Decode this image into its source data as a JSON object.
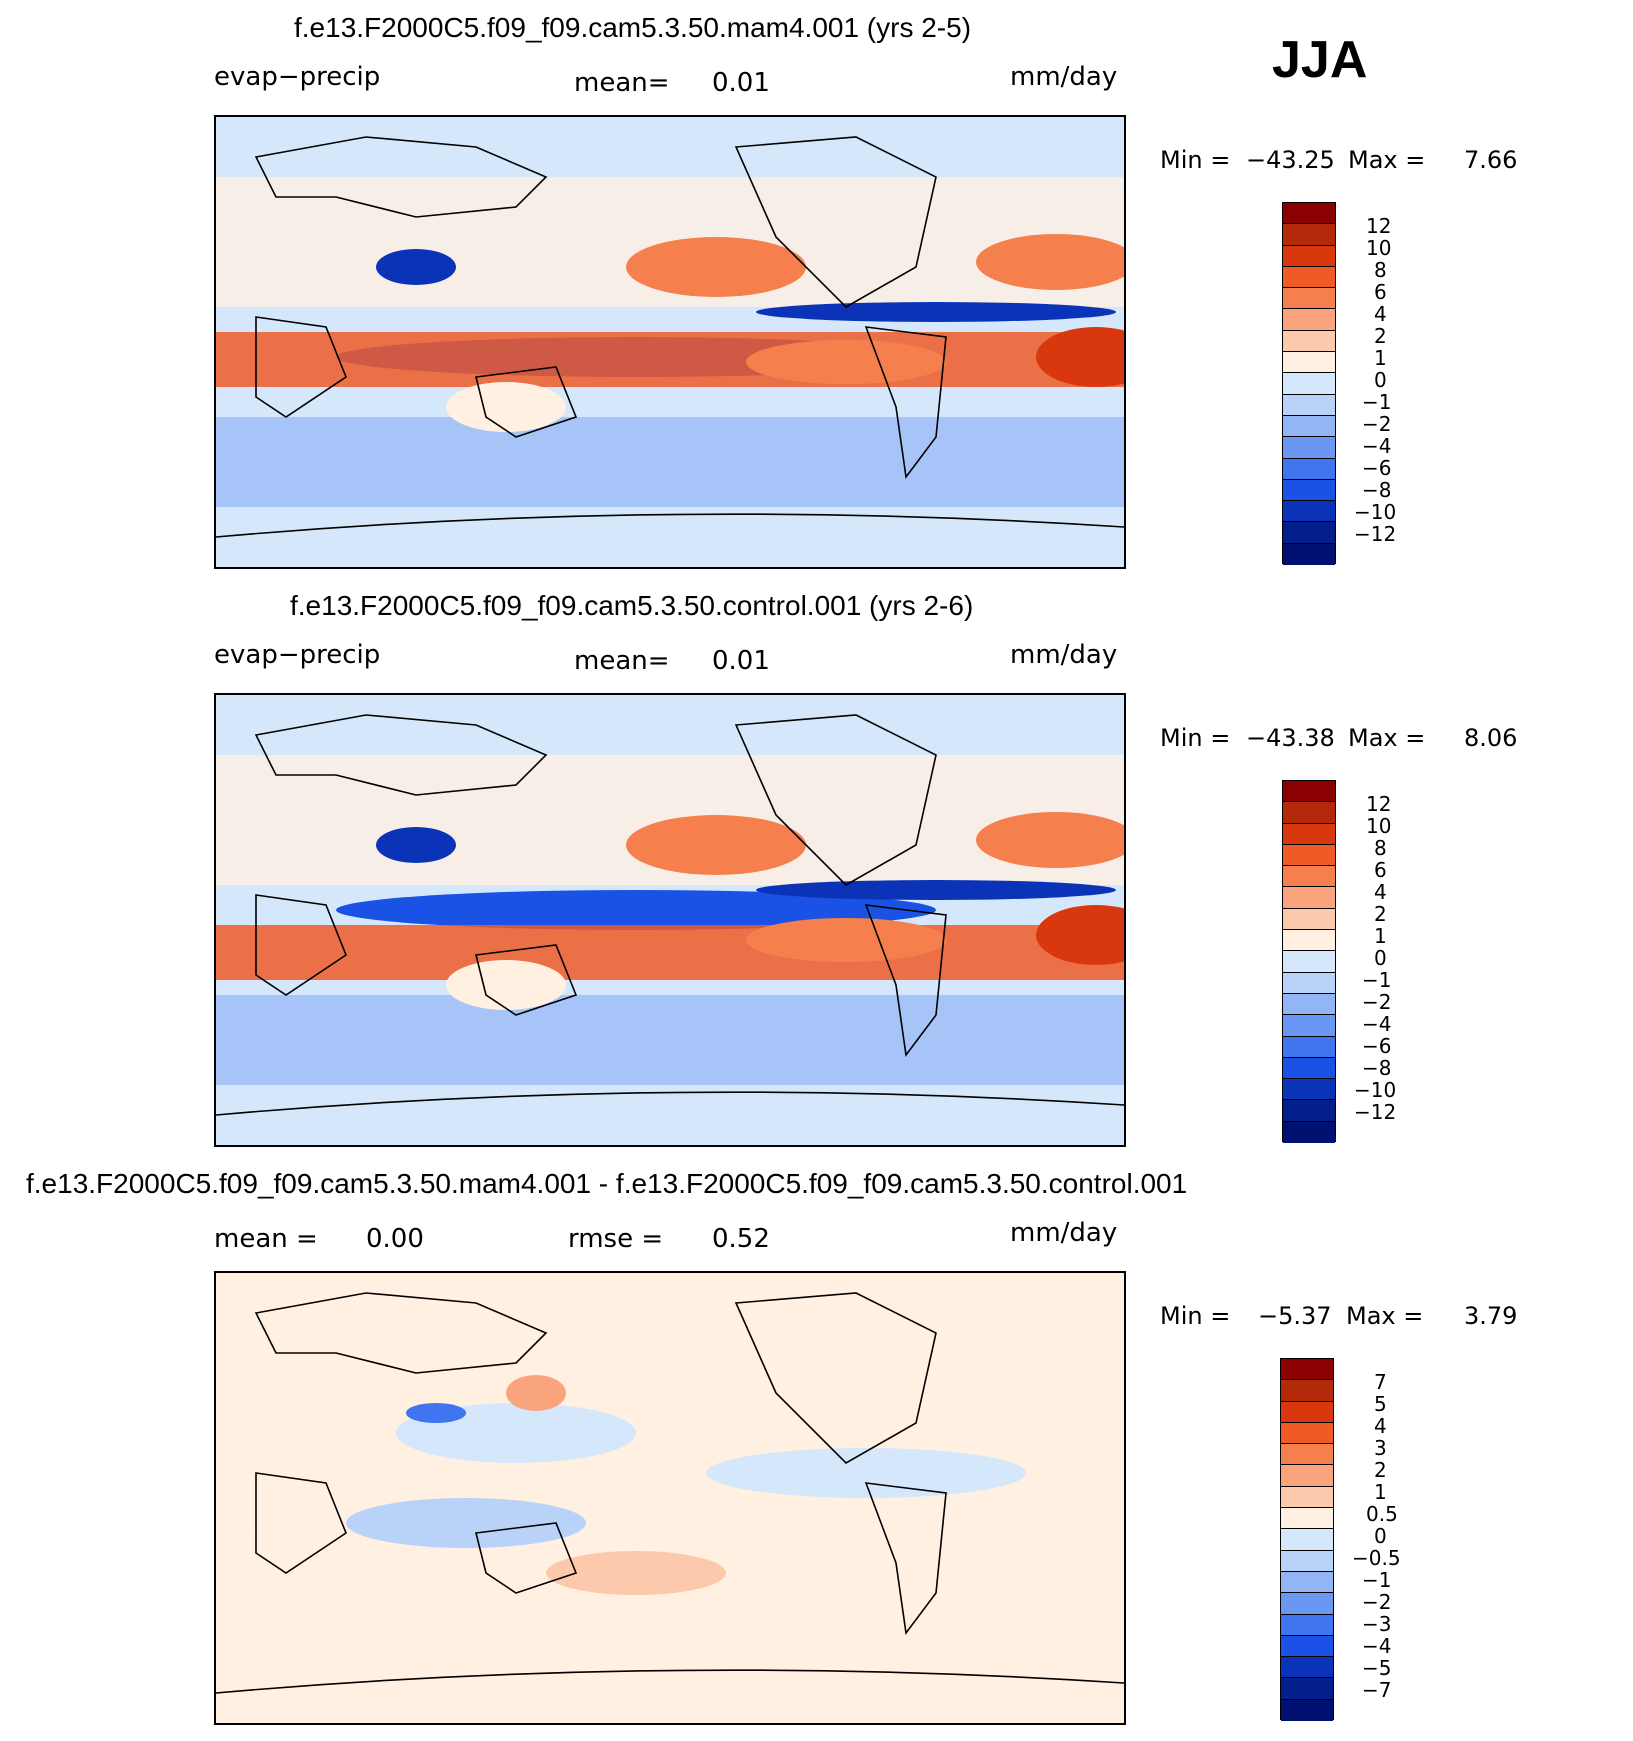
{
  "season": "JJA",
  "panels": [
    {
      "id": "mam4",
      "title": "f.e13.F2000C5.f09_f09.cam5.3.50.mam4.001 (yrs 2-5)",
      "left_label": "evap−precip",
      "center_label": "mean=",
      "center_value": "0.01",
      "units": "mm/day",
      "min_label": "Min  =",
      "min_value": "−43.25",
      "max_label": "Max  =",
      "max_value": "7.66",
      "colorbar": {
        "colors": [
          "#8b0000",
          "#b22a0a",
          "#d9370d",
          "#ef5a27",
          "#f6804d",
          "#f9a47c",
          "#fdc9ad",
          "#fff0e2",
          "#d5e8fb",
          "#b8d2f8",
          "#92b5f5",
          "#6a97f3",
          "#3f75ef",
          "#1a52e6",
          "#0b33b8",
          "#031f8c",
          "#001070"
        ],
        "labels": [
          "12",
          "10",
          "8",
          "6",
          "4",
          "2",
          "1",
          "0",
          "−1",
          "−2",
          "−4",
          "−6",
          "−8",
          "−10",
          "−12"
        ]
      }
    },
    {
      "id": "control",
      "title": "f.e13.F2000C5.f09_f09.cam5.3.50.control.001 (yrs 2-6)",
      "left_label": "evap−precip",
      "center_label": "mean=",
      "center_value": "0.01",
      "units": "mm/day",
      "min_label": "Min  =",
      "min_value": "−43.38",
      "max_label": "Max  =",
      "max_value": "8.06",
      "colorbar": {
        "colors": [
          "#8b0000",
          "#b22a0a",
          "#d9370d",
          "#ef5a27",
          "#f6804d",
          "#f9a47c",
          "#fdc9ad",
          "#fff0e2",
          "#d5e8fb",
          "#b8d2f8",
          "#92b5f5",
          "#6a97f3",
          "#3f75ef",
          "#1a52e6",
          "#0b33b8",
          "#031f8c",
          "#001070"
        ],
        "labels": [
          "12",
          "10",
          "8",
          "6",
          "4",
          "2",
          "1",
          "0",
          "−1",
          "−2",
          "−4",
          "−6",
          "−8",
          "−10",
          "−12"
        ]
      }
    },
    {
      "id": "diff",
      "title": "f.e13.F2000C5.f09_f09.cam5.3.50.mam4.001 - f.e13.F2000C5.f09_f09.cam5.3.50.control.001",
      "left_label": "mean =",
      "left_value": "0.00",
      "center_label": "rmse =",
      "center_value": "0.52",
      "units": "mm/day",
      "min_label": "Min  =",
      "min_value": "−5.37",
      "max_label": "Max  =",
      "max_value": "3.79",
      "colorbar": {
        "colors": [
          "#8b0000",
          "#b22a0a",
          "#d9370d",
          "#ef5a27",
          "#f6804d",
          "#f9a47c",
          "#fdc9ad",
          "#fff0e2",
          "#d5e8fb",
          "#b8d2f8",
          "#92b5f5",
          "#6a97f3",
          "#3f75ef",
          "#1a52e6",
          "#0b33b8",
          "#031f8c",
          "#001070"
        ],
        "labels": [
          "7",
          "5",
          "4",
          "3",
          "2",
          "1",
          "0.5",
          "0",
          "−0.5",
          "−1",
          "−2",
          "−3",
          "−4",
          "−5",
          "−7"
        ]
      }
    }
  ]
}
